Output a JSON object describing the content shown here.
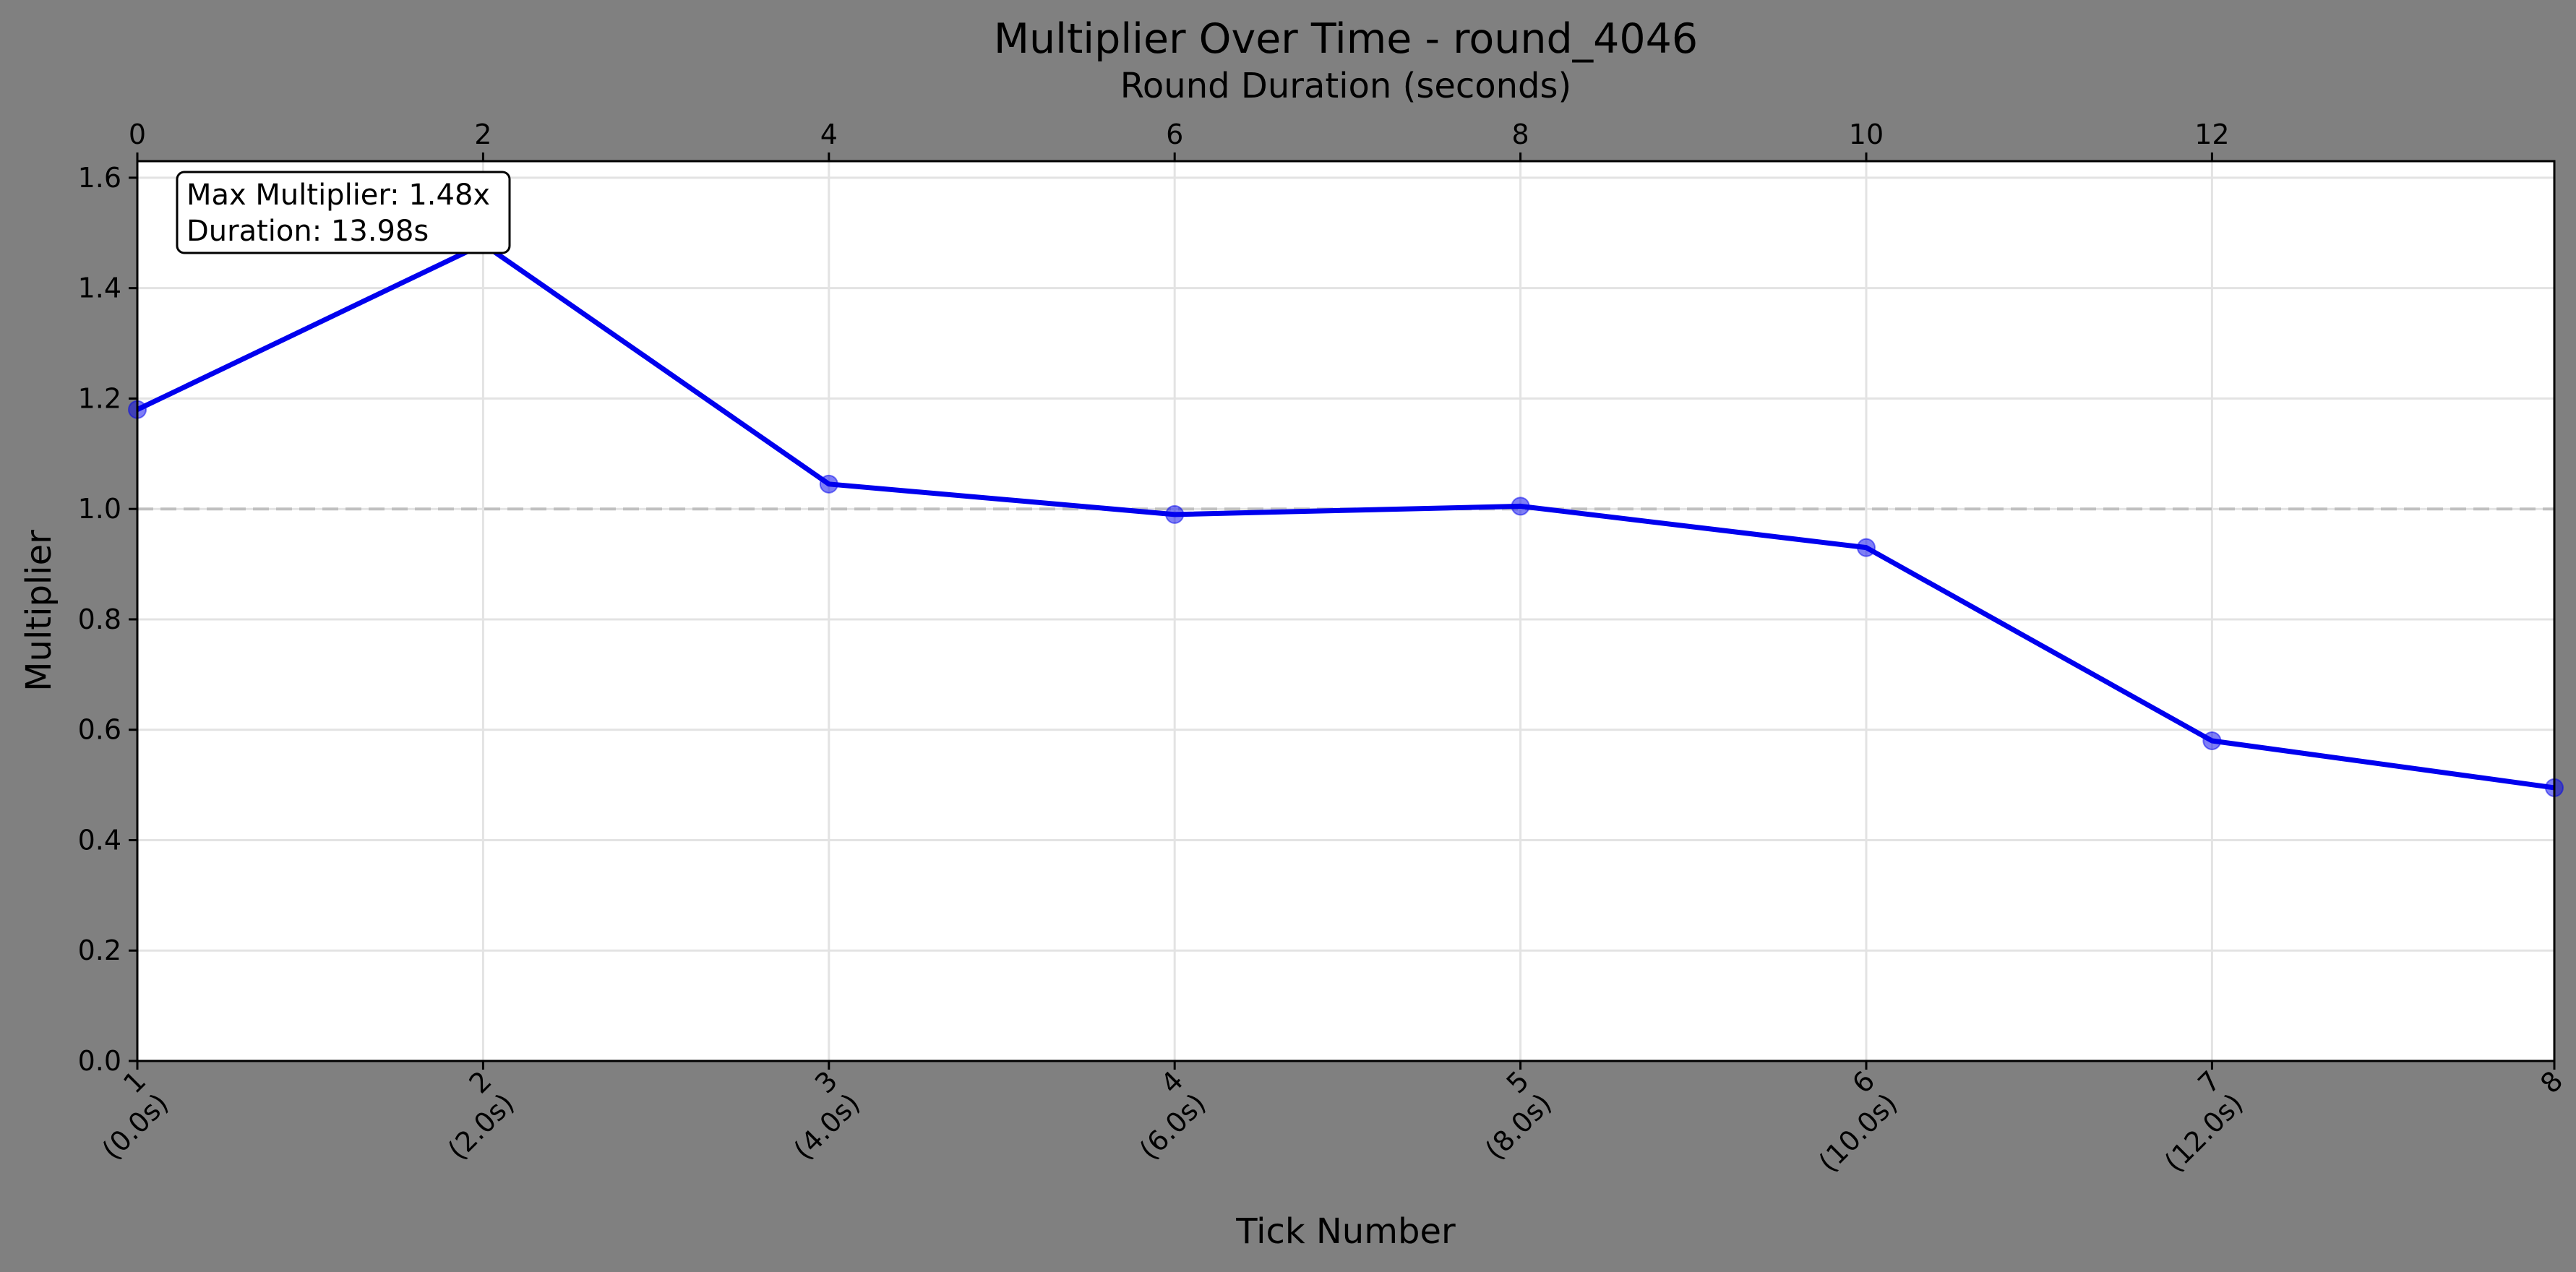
{
  "chart_data": {
    "type": "line",
    "title": "Multiplier Over Time - round_4046",
    "xlabel": "Tick Number",
    "ylabel": "Multiplier",
    "top_xlabel": "Round Duration (seconds)",
    "categories": [
      [
        "1",
        "(0.0s)"
      ],
      [
        "2",
        "(2.0s)"
      ],
      [
        "3",
        "(4.0s)"
      ],
      [
        "4",
        "(6.0s)"
      ],
      [
        "5",
        "(8.0s)"
      ],
      [
        "6",
        "(10.0s)"
      ],
      [
        "7",
        "(12.0s)"
      ],
      [
        "8",
        ""
      ]
    ],
    "x_seconds": [
      0,
      2,
      4,
      6,
      8,
      10,
      12,
      13.98
    ],
    "series": [
      {
        "values": [
          1.18,
          1.48,
          1.045,
          0.99,
          1.005,
          0.93,
          0.58,
          0.495
        ],
        "color": "#0000ee"
      }
    ],
    "xlim": [
      0,
      13.98
    ],
    "ylim": [
      0,
      1.63
    ],
    "yticks": [
      "0.0",
      "0.2",
      "0.4",
      "0.6",
      "0.8",
      "1.0",
      "1.2",
      "1.4",
      "1.6"
    ],
    "top_xticks": [
      "0",
      "2",
      "4",
      "6",
      "8",
      "10",
      "12"
    ],
    "reference_line": 1.0,
    "grid": true,
    "annotation": [
      "Max Multiplier: 1.48x",
      "Duration: 13.98s"
    ],
    "annotation_placement": "top-left"
  }
}
